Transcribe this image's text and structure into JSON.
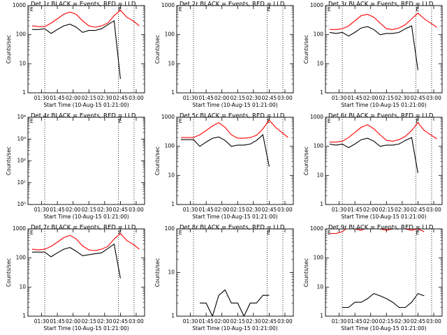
{
  "chart_data": [
    {
      "type": "line",
      "title": "Det 1r BLACK = Events, RED = LLD",
      "xlabel": "Start Time (10-Aug-15 01:21:00)",
      "ylabel": "Counts/sec",
      "log_y": true,
      "x": [
        "01:21",
        "01:27",
        "01:33",
        "01:39",
        "01:45",
        "01:51",
        "01:57",
        "02:03",
        "02:09",
        "02:15",
        "02:21",
        "02:27",
        "02:33",
        "02:39",
        "02:45",
        "02:51",
        "02:57",
        "03:03"
      ],
      "xlim": [
        "01:17",
        "03:08"
      ],
      "xticks": [
        "01:30",
        "01:45",
        "02:00",
        "02:15",
        "02:30",
        "02:45",
        "03:00"
      ],
      "ylim": [
        1,
        1000
      ],
      "yticks": [
        1,
        10,
        100,
        1000
      ],
      "event_lines": [
        "01:33",
        "02:43",
        "02:58"
      ],
      "markers": [
        {
          "x": "01:19",
          "label": "E"
        },
        {
          "x": "02:43",
          "label": "E"
        }
      ],
      "series": [
        {
          "color": "#ff0000",
          "values": [
            200,
            190,
            190,
            250,
            350,
            500,
            600,
            500,
            300,
            200,
            180,
            200,
            250,
            450,
            700,
            400,
            300,
            200
          ]
        },
        {
          "color": "#000000",
          "values": [
            150,
            150,
            160,
            110,
            150,
            200,
            230,
            180,
            120,
            140,
            140,
            160,
            220,
            300,
            3,
            null,
            null,
            null
          ]
        }
      ]
    },
    {
      "type": "line",
      "title": "Det 2r BLACK = Events, RED = LLD",
      "xlabel": "Start Time (10-Aug-15 01:21:00)",
      "ylabel": "Counts/sec",
      "log_y": true,
      "x": [],
      "xlim": [
        "01:17",
        "03:08"
      ],
      "xticks": [
        "01:30",
        "01:45",
        "02:00",
        "02:15",
        "02:30",
        "02:45",
        "03:00"
      ],
      "ylim": [
        1,
        1000
      ],
      "yticks": [
        1,
        10,
        100,
        1000
      ],
      "event_lines": [
        "01:33",
        "02:43",
        "02:58"
      ],
      "markers": [
        {
          "x": "01:19",
          "label": "E"
        },
        {
          "x": "02:43",
          "label": "E"
        }
      ],
      "series": []
    },
    {
      "type": "line",
      "title": "Det 3r BLACK = Events, RED = LLD",
      "xlabel": "Start Time (10-Aug-15 01:21:00)",
      "ylabel": "Counts/sec",
      "log_y": true,
      "x": [
        "01:21",
        "01:27",
        "01:33",
        "01:39",
        "01:45",
        "01:51",
        "01:57",
        "02:03",
        "02:09",
        "02:15",
        "02:21",
        "02:27",
        "02:33",
        "02:39",
        "02:45",
        "02:51",
        "02:57",
        "03:03"
      ],
      "xlim": [
        "01:17",
        "03:08"
      ],
      "xticks": [
        "01:30",
        "01:45",
        "02:00",
        "02:15",
        "02:30",
        "02:45",
        "03:00"
      ],
      "ylim": [
        1,
        1000
      ],
      "yticks": [
        1,
        10,
        100,
        1000
      ],
      "event_lines": [
        "01:33",
        "02:43",
        "02:58"
      ],
      "markers": [
        {
          "x": "01:19",
          "label": "E"
        },
        {
          "x": "02:43",
          "label": "E"
        }
      ],
      "series": [
        {
          "color": "#ff0000",
          "values": [
            150,
            150,
            160,
            200,
            300,
            450,
            500,
            400,
            250,
            160,
            150,
            170,
            220,
            350,
            550,
            350,
            250,
            180
          ]
        },
        {
          "color": "#000000",
          "values": [
            120,
            110,
            120,
            90,
            120,
            170,
            190,
            150,
            100,
            110,
            110,
            120,
            160,
            200,
            6,
            null,
            null,
            null
          ]
        }
      ]
    },
    {
      "type": "line",
      "title": "Det 4r BLACK = Events, RED = LLD",
      "xlabel": "Start Time (10-Aug-15 01:21:00)",
      "ylabel": "Counts/sec",
      "log_y": true,
      "x": [],
      "xlim": [
        "01:17",
        "03:08"
      ],
      "xticks": [
        "01:30",
        "01:45",
        "02:00",
        "02:15",
        "02:30",
        "02:45",
        "03:00"
      ],
      "ylim": [
        1,
        10000
      ],
      "yticks": [
        {
          "value": 1,
          "label": "10⁰"
        },
        {
          "value": 10,
          "label": "10¹"
        },
        {
          "value": 100,
          "label": "10²"
        },
        {
          "value": 1000,
          "label": "10³"
        },
        {
          "value": 10000,
          "label": "10⁴"
        }
      ],
      "event_lines": [
        "01:33",
        "02:43",
        "02:58"
      ],
      "markers": [
        {
          "x": "01:19",
          "label": "E"
        },
        {
          "x": "02:43",
          "label": "E"
        }
      ],
      "series": []
    },
    {
      "type": "line",
      "title": "Det 5r BLACK = Events, RED = LLD",
      "xlabel": "Start Time (10-Aug-15 01:21:00)",
      "ylabel": "Counts/sec",
      "log_y": true,
      "x": [
        "01:21",
        "01:27",
        "01:33",
        "01:39",
        "01:45",
        "01:51",
        "01:57",
        "02:03",
        "02:09",
        "02:15",
        "02:21",
        "02:27",
        "02:33",
        "02:39",
        "02:45",
        "02:51",
        "02:57",
        "03:03"
      ],
      "xlim": [
        "01:17",
        "03:08"
      ],
      "xticks": [
        "01:30",
        "01:45",
        "02:00",
        "02:15",
        "02:30",
        "02:45",
        "03:00"
      ],
      "ylim": [
        1,
        1000
      ],
      "yticks": [
        1,
        10,
        100,
        1000
      ],
      "event_lines": [
        "01:33",
        "02:43",
        "02:58"
      ],
      "markers": [
        {
          "x": "01:19",
          "label": "E"
        },
        {
          "x": "02:43",
          "label": "E"
        }
      ],
      "series": [
        {
          "color": "#ff0000",
          "values": [
            200,
            200,
            200,
            250,
            350,
            500,
            650,
            450,
            250,
            190,
            190,
            200,
            240,
            400,
            800,
            450,
            300,
            200
          ]
        },
        {
          "color": "#000000",
          "values": [
            170,
            170,
            170,
            100,
            140,
            190,
            210,
            160,
            100,
            110,
            110,
            120,
            160,
            250,
            20,
            null,
            null,
            null
          ]
        }
      ]
    },
    {
      "type": "line",
      "title": "Det 6r BLACK = Events, RED = LLD",
      "xlabel": "Start Time (10-Aug-15 01:21:00)",
      "ylabel": "Counts/sec",
      "log_y": true,
      "x": [
        "01:21",
        "01:27",
        "01:33",
        "01:39",
        "01:45",
        "01:51",
        "01:57",
        "02:03",
        "02:09",
        "02:15",
        "02:21",
        "02:27",
        "02:33",
        "02:39",
        "02:45",
        "02:51",
        "02:57",
        "03:03"
      ],
      "xlim": [
        "01:17",
        "03:08"
      ],
      "xticks": [
        "01:30",
        "01:45",
        "02:00",
        "02:15",
        "02:30",
        "02:45",
        "03:00"
      ],
      "ylim": [
        1,
        1000
      ],
      "yticks": [
        1,
        10,
        100,
        1000
      ],
      "event_lines": [
        "01:33",
        "02:43",
        "02:58"
      ],
      "markers": [
        {
          "x": "01:19",
          "label": "E"
        },
        {
          "x": "02:43",
          "label": "E"
        }
      ],
      "series": [
        {
          "color": "#ff0000",
          "values": [
            140,
            140,
            150,
            200,
            300,
            450,
            550,
            400,
            250,
            160,
            150,
            170,
            220,
            350,
            650,
            350,
            250,
            180
          ]
        },
        {
          "color": "#000000",
          "values": [
            120,
            110,
            120,
            90,
            120,
            170,
            190,
            150,
            100,
            110,
            110,
            120,
            160,
            200,
            12,
            null,
            null,
            null
          ]
        }
      ]
    },
    {
      "type": "line",
      "title": "Det 7r BLACK = Events, RED = LLD",
      "xlabel": "Start Time (10-Aug-15 01:21:00)",
      "ylabel": "Counts/sec",
      "log_y": true,
      "x": [
        "01:21",
        "01:27",
        "01:33",
        "01:39",
        "01:45",
        "01:51",
        "01:57",
        "02:03",
        "02:09",
        "02:15",
        "02:21",
        "02:27",
        "02:33",
        "02:39",
        "02:45",
        "02:51",
        "02:57",
        "03:03"
      ],
      "xlim": [
        "01:17",
        "03:08"
      ],
      "xticks": [
        "01:30",
        "01:45",
        "02:00",
        "02:15",
        "02:30",
        "02:45",
        "03:00"
      ],
      "ylim": [
        1,
        1000
      ],
      "yticks": [
        1,
        10,
        100,
        1000
      ],
      "event_lines": [
        "01:33",
        "02:43",
        "02:58"
      ],
      "markers": [
        {
          "x": "01:19",
          "label": "E"
        },
        {
          "x": "02:43",
          "label": "E"
        }
      ],
      "series": [
        {
          "color": "#ff0000",
          "values": [
            200,
            190,
            200,
            250,
            350,
            500,
            600,
            450,
            260,
            190,
            180,
            200,
            250,
            450,
            700,
            400,
            300,
            200
          ]
        },
        {
          "color": "#000000",
          "values": [
            160,
            160,
            160,
            110,
            150,
            200,
            230,
            170,
            120,
            130,
            140,
            150,
            210,
            300,
            20,
            null,
            null,
            null
          ]
        }
      ]
    },
    {
      "type": "line",
      "title": "Det 8r BLACK = Events, RED = LLD",
      "xlabel": "Start Time (10-Aug-15 01:21:00)",
      "ylabel": "Counts/sec",
      "log_y": true,
      "x": [
        "01:21",
        "01:27",
        "01:33",
        "01:39",
        "01:45",
        "01:51",
        "01:57",
        "02:03",
        "02:09",
        "02:15",
        "02:21",
        "02:27",
        "02:33",
        "02:39",
        "02:45",
        "02:51",
        "02:57",
        "03:03"
      ],
      "xlim": [
        "01:17",
        "03:08"
      ],
      "xticks": [
        "01:30",
        "01:45",
        "02:00",
        "02:15",
        "02:30",
        "02:45",
        "03:00"
      ],
      "ylim": [
        1,
        100
      ],
      "yticks": [
        1,
        10,
        100
      ],
      "event_lines": [
        "01:33",
        "02:43",
        "02:58"
      ],
      "markers": [
        {
          "x": "01:19",
          "label": "E"
        },
        {
          "x": "02:43",
          "label": "E"
        }
      ],
      "series": [
        {
          "color": "#000000",
          "values": [
            null,
            null,
            null,
            2,
            2,
            1,
            3,
            4,
            2,
            2,
            1,
            2,
            2,
            3,
            3,
            null,
            null,
            null
          ]
        }
      ]
    },
    {
      "type": "line",
      "title": "Det 9r BLACK = Events, RED = LLD",
      "xlabel": "Start Time (10-Aug-15 01:21:00)",
      "ylabel": "Counts/sec",
      "log_y": true,
      "x": [
        "01:21",
        "01:27",
        "01:33",
        "01:39",
        "01:45",
        "01:51",
        "01:57",
        "02:03",
        "02:09",
        "02:15",
        "02:21",
        "02:27",
        "02:33",
        "02:39",
        "02:45",
        "02:51",
        "02:57",
        "03:03"
      ],
      "xlim": [
        "01:17",
        "03:08"
      ],
      "xticks": [
        "01:30",
        "01:45",
        "02:00",
        "02:15",
        "02:30",
        "02:45",
        "03:00"
      ],
      "ylim": [
        1,
        1000
      ],
      "yticks": [
        1,
        10,
        100,
        1000
      ],
      "event_lines": [
        "01:33",
        "02:43",
        "02:58"
      ],
      "markers": [
        {
          "x": "01:19",
          "label": "E"
        },
        {
          "x": "02:43",
          "label": "E"
        }
      ],
      "series": [
        {
          "color": "#ff0000",
          "values": [
            700,
            700,
            800,
            1200,
            1000,
            900,
            1100,
            1200,
            1000,
            900,
            1000,
            1100,
            1000,
            900,
            1000,
            800,
            null,
            null
          ]
        },
        {
          "color": "#000000",
          "values": [
            null,
            null,
            2,
            2,
            3,
            3,
            4,
            6,
            5,
            4,
            3,
            2,
            2,
            3,
            6,
            5,
            null,
            null
          ]
        }
      ]
    }
  ]
}
